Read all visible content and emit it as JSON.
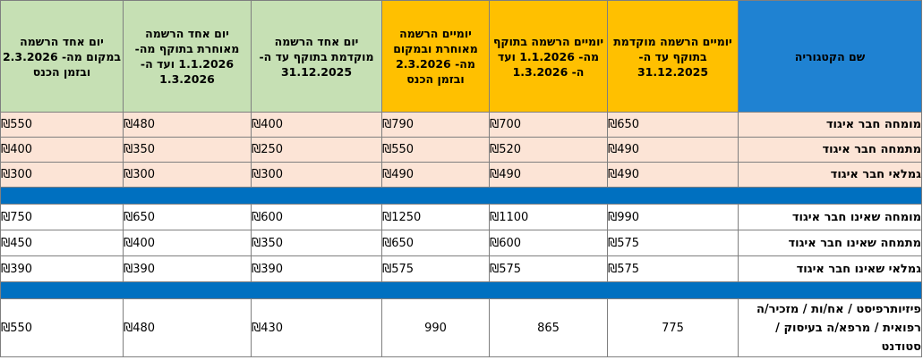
{
  "table": {
    "header": {
      "category": "שם הקטגוריה",
      "col1": "יומיים הרשמה מוקדמת בתוקף עד ה- 31.12.2025",
      "col2": "יומיים הרשמה בתוקף מה- 1.1.2026 ועד ה- 1.3.2026",
      "col3": "יומיים הרשמה מאוחרת ובמקום מה- 2.3.2026 ובזמן הכנס",
      "col4": "יום אחד הרשמה מוקדמת בתוקף עד ה- 31.12.2025",
      "col5": "יום אחד הרשמה מאוחרת בתוקף מה- 1.1.2026 ועד ה- 1.3.2026",
      "col6": "יום אחד הרשמה במקום מה- 2.3.2026 ובזמן הכנס"
    },
    "member_rows": [
      {
        "category": "מומחה חבר איגוד",
        "prices": [
          "₪650",
          "₪700",
          "₪790",
          "₪400",
          "₪480",
          "₪550"
        ]
      },
      {
        "category": "מתמחה חבר איגוד",
        "prices": [
          "₪490",
          "₪520",
          "₪550",
          "₪250",
          "₪350",
          "₪400"
        ]
      },
      {
        "category": "גמלאי חבר איגוד",
        "prices": [
          "₪490",
          "₪490",
          "₪490",
          "₪300",
          "₪300",
          "₪300"
        ]
      }
    ],
    "non_member_rows": [
      {
        "category": "מומחה שאינו חבר איגוד",
        "prices": [
          "₪990",
          "₪1100",
          "₪1250",
          "₪600",
          "₪650",
          "₪750"
        ]
      },
      {
        "category": "מתמחה שאינו חבר איגוד",
        "prices": [
          "₪575",
          "₪600",
          "₪650",
          "₪350",
          "₪400",
          "₪450"
        ]
      },
      {
        "category": "גמלאי שאינו חבר איגוד",
        "prices": [
          "₪575",
          "₪575",
          "₪575",
          "₪390",
          "₪390",
          "₪390"
        ]
      }
    ],
    "student_row": {
      "category": "פיזיותרפיסט / אח/ות / מזכיר/ה רפואית / מרפא/ה בעיסוק / סטודנט",
      "prices": [
        "775",
        "865",
        "990",
        "₪430",
        "₪480",
        "₪550"
      ]
    },
    "colors": {
      "category_header": "#1f82d2",
      "two_day_header": "#ffc000",
      "one_day_header": "#c6e0b4",
      "member_rows": "#fce4d6",
      "separator": "#0070c0"
    }
  }
}
